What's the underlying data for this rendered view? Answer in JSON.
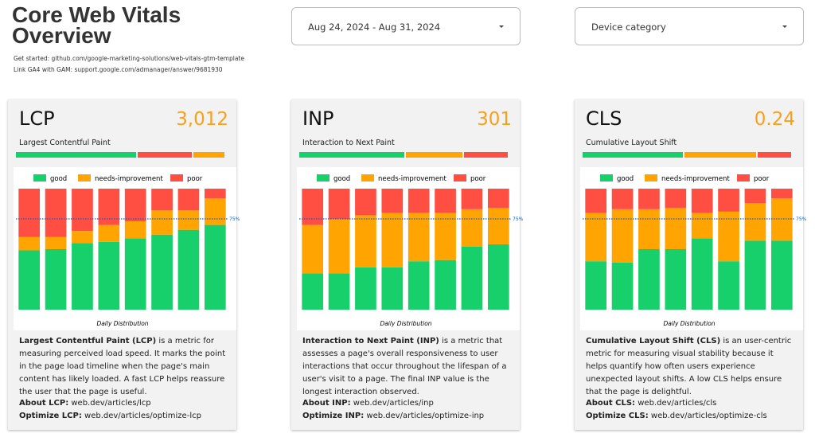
{
  "header": {
    "title": "Core Web Vitals Overview",
    "links": [
      "Get started: github.com/google-marketing-solutions/web-vitals-gtm-template",
      "Link GA4 with GAM: support.google.com/admanager/answer/9681930"
    ]
  },
  "filters": [
    "Aug 24, 2024 - Aug 31, 2024",
    "Device category"
  ],
  "cards": [
    {
      "metric": "LCP",
      "value": "3,012",
      "subtitle": "Largest Contentful Paint",
      "scale": [
        {
          "color": "#17cf6b",
          "value": 58
        },
        {
          "color": "#ff4e42",
          "value": 26
        },
        {
          "color": "#ffa400",
          "value": 15
        }
      ],
      "chart": {
        "type": "bar",
        "stacked": true,
        "caption": "Daily Distribution",
        "categories": [
          null,
          null,
          null,
          null,
          null,
          null,
          null,
          null
        ],
        "ylim": [
          0,
          100
        ],
        "threshold": {
          "value": 75,
          "label": "75%"
        },
        "series": [
          {
            "name": "good",
            "color": "#17cf6b",
            "values": [
              49,
              50,
              55,
              56,
              59,
              62,
              66,
              70
            ]
          },
          {
            "name": "needs-improvement",
            "color": "#ffa400",
            "values": [
              11,
              10,
              10,
              14,
              14,
              20,
              16,
              22
            ]
          },
          {
            "name": "poor",
            "color": "#ff4e42",
            "values": [
              40,
              40,
              35,
              30,
              27,
              18,
              18,
              8
            ]
          }
        ]
      },
      "description": {
        "bold": "Largest Contentful Paint (LCP)",
        "text": " is a metric for measuring perceived load speed. It marks the point in the page load timeline when the page's main content has likely loaded. A fast LCP helps reassure the user that the page is useful."
      },
      "links": [
        {
          "label": "About LCP:",
          "url": "web.dev/articles/lcp"
        },
        {
          "label": "Optimize LCP:",
          "url": "web.dev/articles/optimize-lcp"
        }
      ]
    },
    {
      "metric": "INP",
      "value": "301",
      "subtitle": "Interaction to Next Paint",
      "scale": [
        {
          "color": "#17cf6b",
          "value": 50
        },
        {
          "color": "#ffa400",
          "value": 27
        },
        {
          "color": "#ff4e42",
          "value": 21
        }
      ],
      "chart": {
        "type": "bar",
        "stacked": true,
        "caption": "Daily Distribution",
        "categories": [
          null,
          null,
          null,
          null,
          null,
          null,
          null,
          null
        ],
        "ylim": [
          0,
          100
        ],
        "threshold": {
          "value": 75,
          "label": "75%"
        },
        "series": [
          {
            "name": "good",
            "color": "#17cf6b",
            "values": [
              30,
              30,
              35,
              35,
              40,
              41,
              52,
              54
            ]
          },
          {
            "name": "needs-improvement",
            "color": "#ffa400",
            "values": [
              40,
              45,
              43,
              45,
              40,
              39,
              31,
              30
            ]
          },
          {
            "name": "poor",
            "color": "#ff4e42",
            "values": [
              30,
              25,
              22,
              20,
              20,
              20,
              17,
              16
            ]
          }
        ]
      },
      "description": {
        "bold": "Interaction to Next Paint (INP)",
        "text": " is a metric that assesses a page's overall responsiveness to user interactions that occur throughout the lifespan of a user's visit to a page. The final INP value is the longest interaction observed."
      },
      "links": [
        {
          "label": "About INP:",
          "url": "web.dev/articles/inp"
        },
        {
          "label": "Optimize INP:",
          "url": "web.dev/articles/optimize-inp"
        }
      ]
    },
    {
      "metric": "CLS",
      "value": "0.24",
      "subtitle": "Cumulative Layout Shift",
      "scale": [
        {
          "color": "#17cf6b",
          "value": 48
        },
        {
          "color": "#ffa400",
          "value": 34
        },
        {
          "color": "#ff4e42",
          "value": 16
        }
      ],
      "chart": {
        "type": "bar",
        "stacked": true,
        "caption": "Daily Distribution",
        "categories": [
          null,
          null,
          null,
          null,
          null,
          null,
          null,
          null
        ],
        "ylim": [
          0,
          100
        ],
        "threshold": {
          "value": 75,
          "label": "75%"
        },
        "series": [
          {
            "name": "good",
            "color": "#17cf6b",
            "values": [
              40,
              39,
              50,
              50,
              59,
              40,
              57,
              57
            ]
          },
          {
            "name": "needs-improvement",
            "color": "#ffa400",
            "values": [
              40,
              44,
              33,
              34,
              21,
              41,
              31,
              35
            ]
          },
          {
            "name": "poor",
            "color": "#ff4e42",
            "values": [
              20,
              17,
              17,
              16,
              20,
              19,
              12,
              8
            ]
          }
        ]
      },
      "description": {
        "bold": "Cumulative Layout Shift (CLS)",
        "text": " is an user-centric metric for measuring visual stability because it helps quantify how often users experience unexpected layout shifts. A low CLS helps ensure that the page is delightful."
      },
      "links": [
        {
          "label": "About CLS:",
          "url": "web.dev/articles/cls"
        },
        {
          "label": "Optimize CLS:",
          "url": "web.dev/articles/optimize-cls"
        }
      ]
    }
  ]
}
